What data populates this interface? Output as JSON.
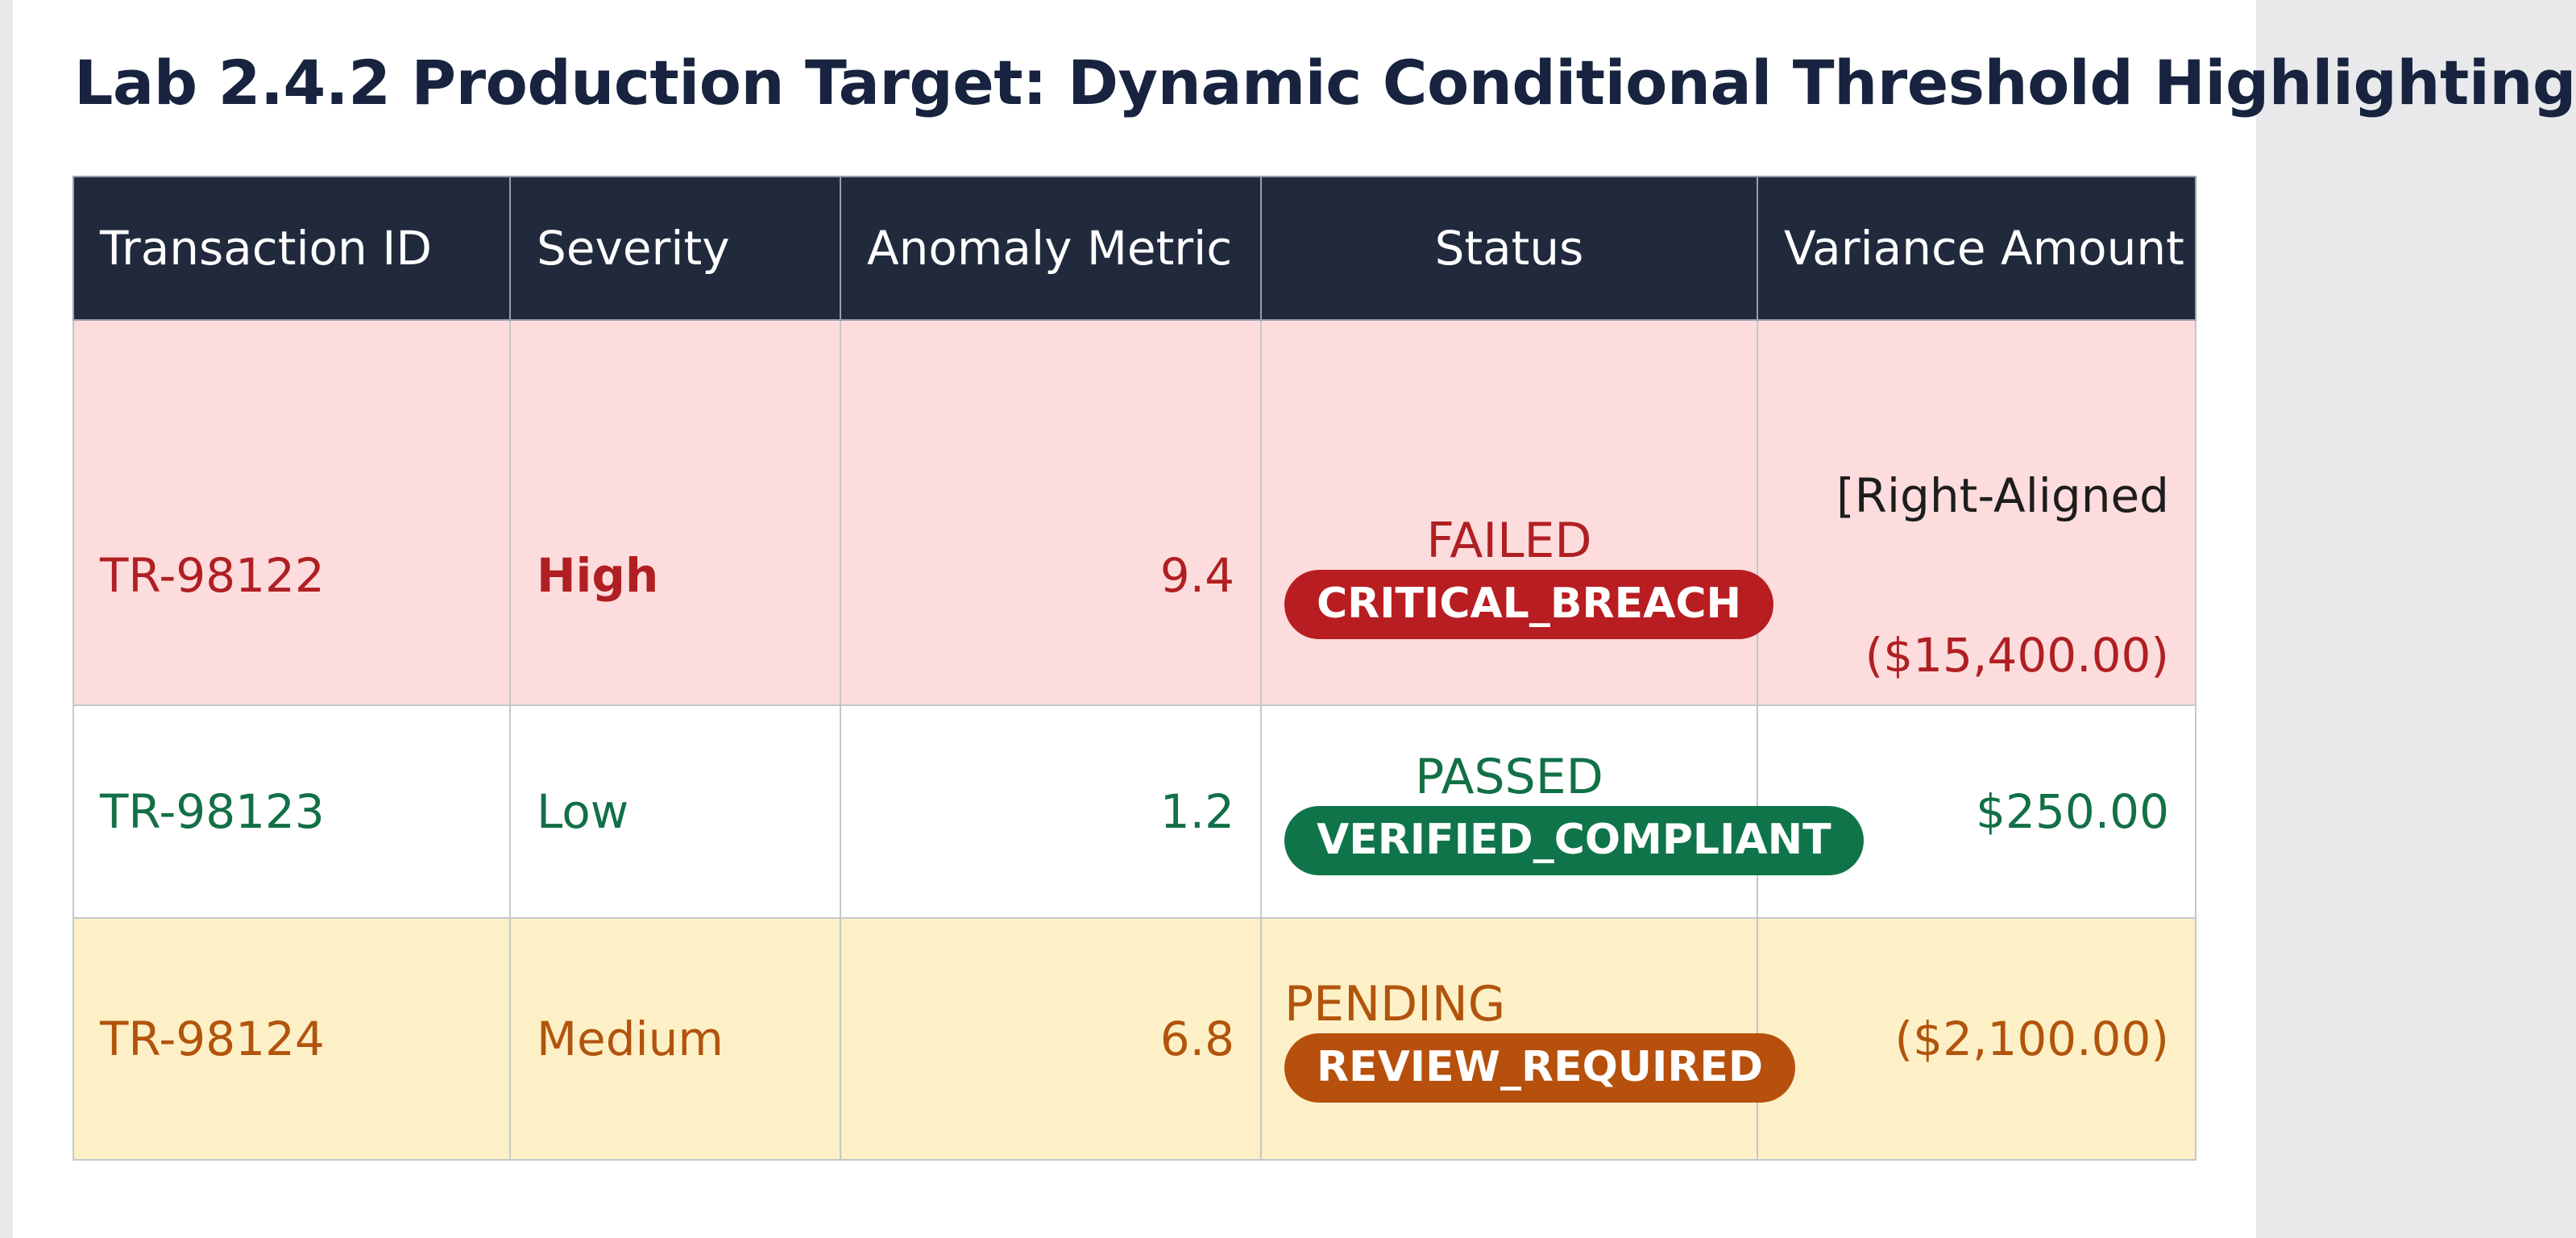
{
  "title": "Lab 2.4.2 Production Target: Dynamic Conditional Threshold Highlighting",
  "columns": [
    "Transaction ID",
    "Severity",
    "Anomaly Metric",
    "Status",
    "Variance Amount"
  ],
  "rows": [
    {
      "transaction_id": "TR-98122",
      "severity": "High",
      "anomaly_metric": "9.4",
      "status": "FAILED",
      "badge": "CRITICAL_BREACH",
      "amount_note": "[Right-Aligned",
      "variance_amount": "($15,400.00)",
      "row_color": "#fcdcdc",
      "text_color": "#b01f23",
      "badge_color": "#b81d22"
    },
    {
      "transaction_id": "TR-98123",
      "severity": "Low",
      "anomaly_metric": "1.2",
      "status": "PASSED",
      "badge": "VERIFIED_COMPLIANT",
      "variance_amount": "$250.00",
      "row_color": "#ffffff",
      "text_color": "#127046",
      "badge_color": "#0f744a"
    },
    {
      "transaction_id": "TR-98124",
      "severity": "Medium",
      "anomaly_metric": "6.8",
      "status": "PENDING",
      "badge": "REVIEW_REQUIRED",
      "variance_amount": "($2,100.00)",
      "row_color": "#fdf0c6",
      "text_color": "#b2540d",
      "badge_color": "#b6500c"
    }
  ],
  "header_color": "#212a3d"
}
